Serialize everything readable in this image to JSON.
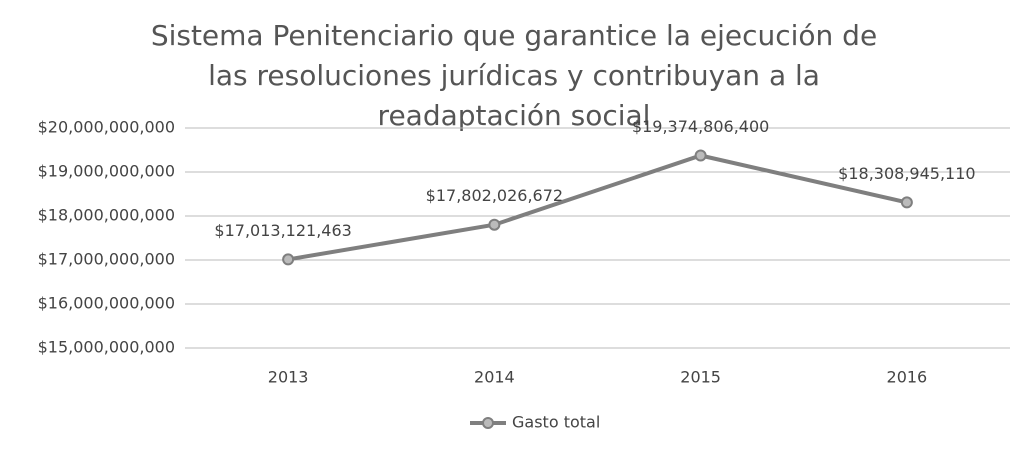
{
  "chart_data": {
    "type": "line",
    "title": "Sistema Penitenciario que garantice la ejecución de las resoluciones jurídicas y contribuyan a la readaptación social",
    "categories": [
      "2013",
      "2014",
      "2015",
      "2016"
    ],
    "series": [
      {
        "name": "Gasto total",
        "color": "#7f7f7f",
        "values": [
          17013121463,
          17802026672,
          19374806400,
          18308945110
        ],
        "value_labels": [
          "$17,013,121,463",
          "$17,802,026,672",
          "$19,374,806,400",
          "$18,308,945,110"
        ]
      }
    ],
    "ylim": [
      15000000000,
      20000000000
    ],
    "yticks": [
      {
        "value": 15000000000,
        "label": "$15,000,000,000"
      },
      {
        "value": 16000000000,
        "label": "$16,000,000,000"
      },
      {
        "value": 17000000000,
        "label": "$17,000,000,000"
      },
      {
        "value": 18000000000,
        "label": "$18,000,000,000"
      },
      {
        "value": 19000000000,
        "label": "$19,000,000,000"
      },
      {
        "value": 20000000000,
        "label": "$20,000,000,000"
      }
    ],
    "grid": true,
    "legend": "bottom"
  }
}
